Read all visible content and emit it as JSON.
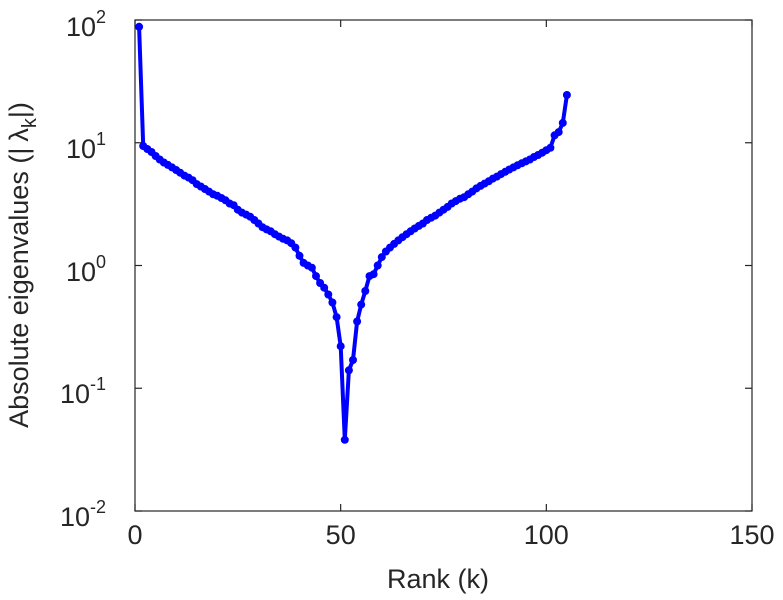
{
  "chart_data": {
    "type": "line",
    "xlabel": "Rank (k)",
    "ylabel": "Absolute eigenvalues (|λk|)",
    "ylabel_parts": {
      "prefix": "Absolute eigenvalues (|",
      "symbol": "λ",
      "subscript": "k",
      "suffix": "|)"
    },
    "xlim": [
      0,
      150
    ],
    "ylim": [
      0.01,
      100
    ],
    "yscale": "log",
    "grid": false,
    "legend": "none",
    "x_ticks": [
      "0",
      "50",
      "100",
      "150"
    ],
    "y_ticks": [
      {
        "base": "10",
        "exp": "-2"
      },
      {
        "base": "10",
        "exp": "-1"
      },
      {
        "base": "10",
        "exp": "0"
      },
      {
        "base": "10",
        "exp": "1"
      },
      {
        "base": "10",
        "exp": "2"
      }
    ],
    "line_color": "#0000ff",
    "series": [
      {
        "x": [
          1,
          2,
          3,
          4,
          5,
          6,
          7,
          8,
          9,
          10,
          11,
          12,
          13,
          14,
          15,
          16,
          17,
          18,
          19,
          20,
          21,
          22,
          23,
          24,
          25,
          26,
          27,
          28,
          29,
          30,
          31,
          32,
          33,
          34,
          35,
          36,
          37,
          38,
          39,
          40,
          41,
          42,
          43,
          44,
          45,
          46,
          47,
          48,
          49,
          50,
          51,
          52,
          53,
          54,
          55,
          56,
          57,
          58,
          59,
          60,
          61,
          62,
          63,
          64,
          65,
          66,
          67,
          68,
          69,
          70,
          71,
          72,
          73,
          74,
          75,
          76,
          77,
          78,
          79,
          80,
          81,
          82,
          83,
          84,
          85,
          86,
          87,
          88,
          89,
          90,
          91,
          92,
          93,
          94,
          95,
          96,
          97,
          98,
          99,
          100,
          101,
          102,
          103,
          104,
          105
        ],
        "y": [
          88,
          9.4,
          8.9,
          8.4,
          7.8,
          7.3,
          6.9,
          6.6,
          6.3,
          6.0,
          5.7,
          5.4,
          5.2,
          4.95,
          4.6,
          4.4,
          4.2,
          4.0,
          3.8,
          3.7,
          3.55,
          3.4,
          3.2,
          3.1,
          2.85,
          2.7,
          2.6,
          2.5,
          2.35,
          2.2,
          2.05,
          1.97,
          1.9,
          1.8,
          1.72,
          1.65,
          1.6,
          1.52,
          1.4,
          1.2,
          1.05,
          1.0,
          0.96,
          0.82,
          0.72,
          0.66,
          0.58,
          0.5,
          0.38,
          0.22,
          0.038,
          0.14,
          0.17,
          0.35,
          0.48,
          0.62,
          0.82,
          0.85,
          1.0,
          1.17,
          1.3,
          1.4,
          1.5,
          1.6,
          1.7,
          1.8,
          1.9,
          2.0,
          2.1,
          2.2,
          2.35,
          2.45,
          2.55,
          2.7,
          2.85,
          3.0,
          3.2,
          3.35,
          3.5,
          3.6,
          3.8,
          4.0,
          4.25,
          4.45,
          4.65,
          4.85,
          5.1,
          5.3,
          5.55,
          5.8,
          6.05,
          6.3,
          6.55,
          6.8,
          7.05,
          7.3,
          7.65,
          7.95,
          8.3,
          8.7,
          9.1,
          11.5,
          12.2,
          14.5,
          24.5
        ]
      }
    ]
  }
}
